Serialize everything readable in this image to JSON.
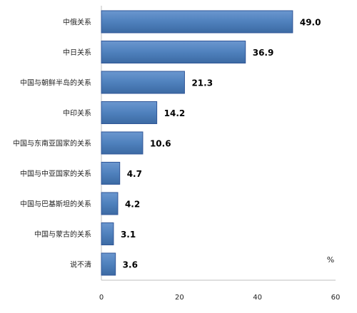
{
  "chart_data": {
    "type": "bar",
    "orientation": "horizontal",
    "categories": [
      "中俄关系",
      "中日关系",
      "中国与朝鲜半岛的关系",
      "中印关系",
      "中国与东南亚国家的关系",
      "中国与中亚国家的关系",
      "中国与巴基斯坦的关系",
      "中国与蒙古的关系",
      "说不清"
    ],
    "values": [
      49.0,
      36.9,
      21.3,
      14.2,
      10.6,
      4.7,
      4.2,
      3.1,
      3.6
    ],
    "value_labels": [
      "49.0",
      "36.9",
      "21.3",
      "14.2",
      "10.6",
      "4.7",
      "4.2",
      "3.1",
      "3.6"
    ],
    "x_ticks": [
      "0",
      "20",
      "40",
      "60"
    ],
    "x_tick_values": [
      0,
      20,
      40,
      60
    ],
    "xlim": [
      0,
      60
    ],
    "unit": "%",
    "grid": false,
    "bar_color": "#4f81bd",
    "bar_edge_color": "#2f5597"
  }
}
